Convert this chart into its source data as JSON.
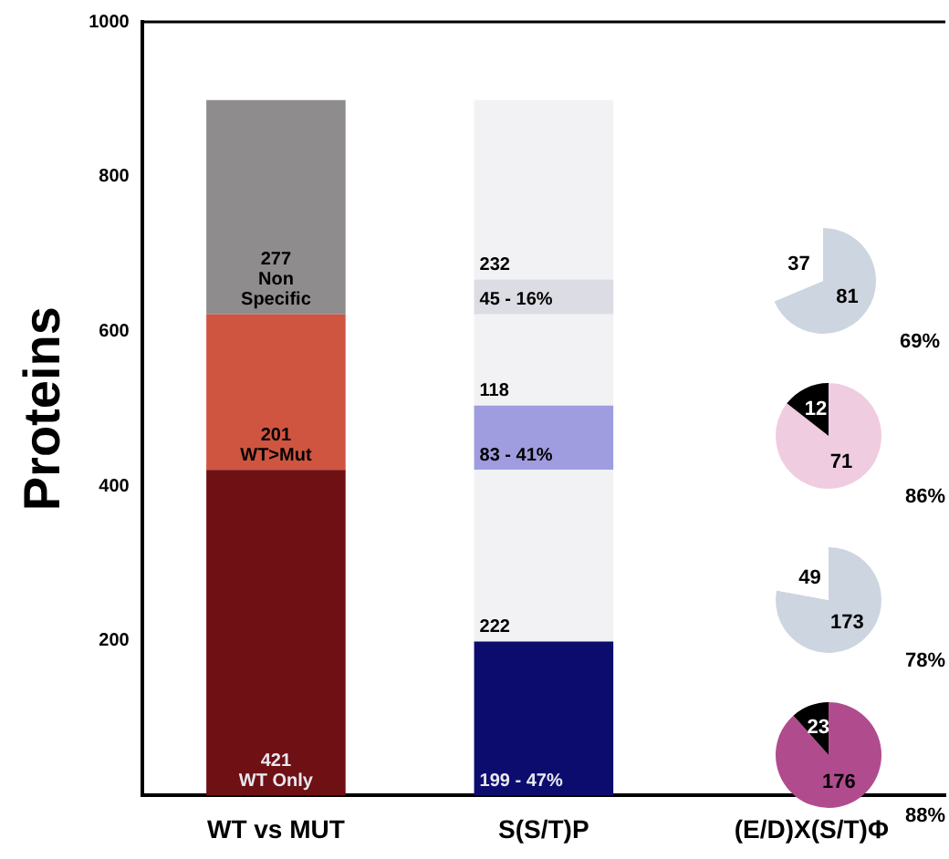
{
  "chart_data": [
    {
      "type": "bar",
      "stacked": true,
      "ylabel": "Proteins",
      "categories": [
        "WT vs MUT",
        "S(S/T)P",
        "(E/D)X(S/T)Φ"
      ],
      "ylim": [
        0,
        1000
      ],
      "yticks": [
        200,
        400,
        600,
        800,
        1000
      ],
      "grid": false,
      "legend": false,
      "series": [
        {
          "colors": [
            "#6e1014",
            "#0c0c6e",
            null
          ],
          "values": [
            421,
            199,
            null
          ],
          "value_labels": [
            "421\nWT Only",
            "199 - 47%",
            null
          ]
        },
        {
          "colors": [
            "#f2f2f4",
            "#f2f2f4",
            null
          ],
          "values": [
            null,
            222,
            null
          ],
          "value_labels": [
            null,
            "222",
            null
          ]
        },
        {
          "colors": [
            "#cf5540",
            "#a09ce0",
            null
          ],
          "values": [
            201,
            83,
            null
          ],
          "value_labels": [
            "201\nWT>Mut",
            "83 - 41%",
            null
          ]
        },
        {
          "colors": [
            "#f2f2f4",
            "#f2f2f4",
            null
          ],
          "values": [
            null,
            118,
            null
          ],
          "value_labels": [
            null,
            "118",
            null
          ]
        },
        {
          "colors": [
            "#8e8c8c",
            "#dcdce4",
            null
          ],
          "values": [
            277,
            45,
            null
          ],
          "value_labels": [
            "277\nNon\nSpecific",
            "45 - 16%",
            null
          ]
        },
        {
          "colors": [
            "#f2f2f4",
            "#f2f2f4",
            null
          ],
          "values": [
            null,
            232,
            null
          ],
          "value_labels": [
            null,
            "232",
            null
          ]
        }
      ]
    },
    {
      "type": "pie",
      "categories": [
        null,
        null
      ],
      "values": [
        81,
        37
      ],
      "colors": [
        "#cdd5e0",
        "#ffffff"
      ],
      "data_labels": true,
      "annotations": [
        "69%"
      ]
    },
    {
      "type": "pie",
      "categories": [
        null,
        null
      ],
      "values": [
        71,
        12
      ],
      "colors": [
        "#f0cce0",
        "#000000"
      ],
      "data_labels": true,
      "annotations": [
        "86%"
      ]
    },
    {
      "type": "pie",
      "categories": [
        null,
        null
      ],
      "values": [
        173,
        49
      ],
      "colors": [
        "#cdd5e0",
        "#ffffff"
      ],
      "data_labels": true,
      "annotations": [
        "78%"
      ]
    },
    {
      "type": "pie",
      "categories": [
        null,
        null
      ],
      "values": [
        176,
        23
      ],
      "colors": [
        "#b04c8e",
        "#000000"
      ],
      "data_labels": true,
      "annotations": [
        "88%"
      ]
    }
  ]
}
